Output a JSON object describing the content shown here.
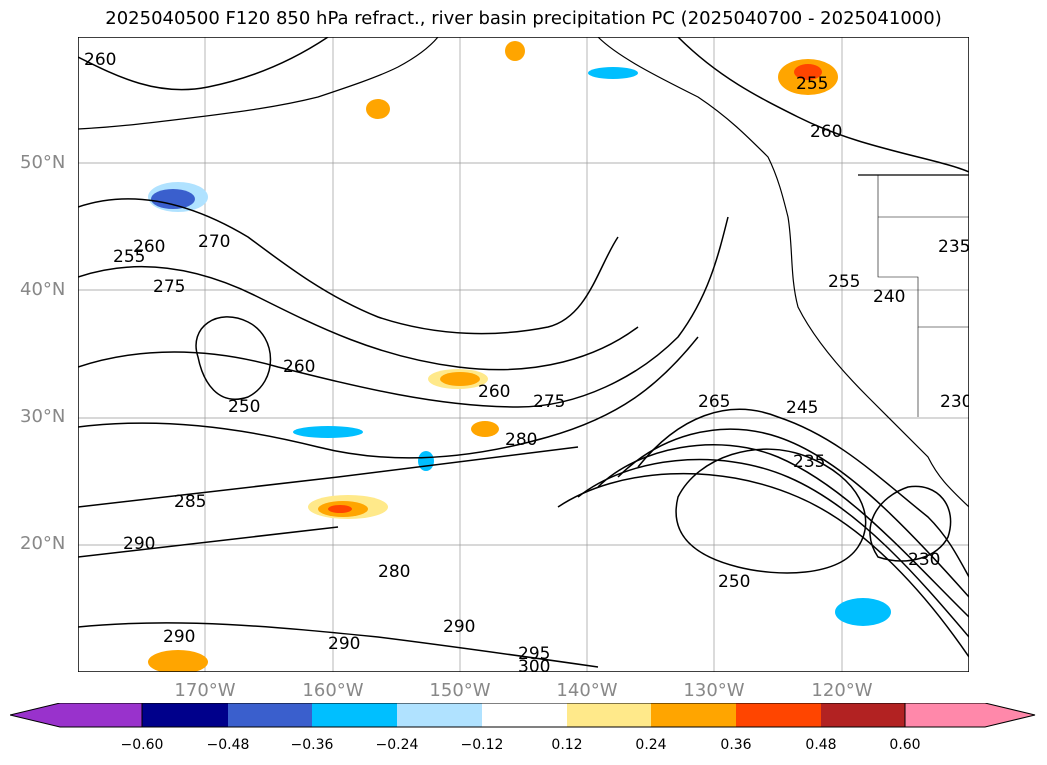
{
  "title": "2025040500 F120 850 hPa refract., river basin precipitation PC (2025040700 - 2025041000)",
  "map": {
    "lon_range": [
      -180,
      -110
    ],
    "lat_range": [
      10,
      60
    ],
    "lat_ticks": [
      "50°N",
      "40°N",
      "30°N",
      "20°N"
    ],
    "lon_ticks": [
      "170°W",
      "160°W",
      "150°W",
      "140°W",
      "130°W",
      "120°W"
    ],
    "grid": true,
    "contour_labels": [
      "260",
      "255",
      "260",
      "270",
      "275",
      "255",
      "260",
      "250",
      "260",
      "275",
      "280",
      "285",
      "290",
      "280",
      "290",
      "290",
      "295",
      "300",
      "265",
      "245",
      "235",
      "250",
      "255",
      "240",
      "230",
      "235",
      "230",
      "260",
      "255"
    ]
  },
  "colorbar": {
    "ticks": [
      "−0.60",
      "−0.48",
      "−0.36",
      "−0.24",
      "−0.12",
      "0.12",
      "0.24",
      "0.36",
      "0.48",
      "0.60"
    ],
    "colors": [
      "#9932cc",
      "#00008b",
      "#3a5fcd",
      "#00bfff",
      "#b0e2ff",
      "#ffffff",
      "#ffe98a",
      "#ffa500",
      "#ff4500",
      "#b22222",
      "#ff88aa"
    ]
  }
}
